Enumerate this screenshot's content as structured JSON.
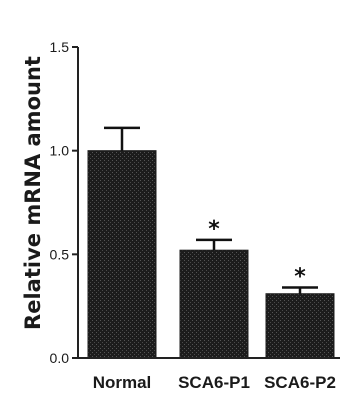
{
  "chart_data": {
    "type": "bar",
    "title": "",
    "xlabel": "",
    "ylabel": "Relative mRNA amount",
    "categories": [
      "Normal",
      "SCA6-P1",
      "SCA6-P2"
    ],
    "values": [
      1.0,
      0.52,
      0.31
    ],
    "errors": [
      0.11,
      0.05,
      0.03
    ],
    "significance": [
      "",
      "*",
      "*"
    ],
    "ylim": [
      0.0,
      1.5
    ],
    "yticks": [
      "0.0",
      "0.5",
      "1.0",
      "1.5"
    ],
    "grid": false,
    "legend": "none",
    "colors": {
      "bar": "#1c1c1c",
      "bar_texture": "#555555",
      "axis": "#222222"
    }
  }
}
